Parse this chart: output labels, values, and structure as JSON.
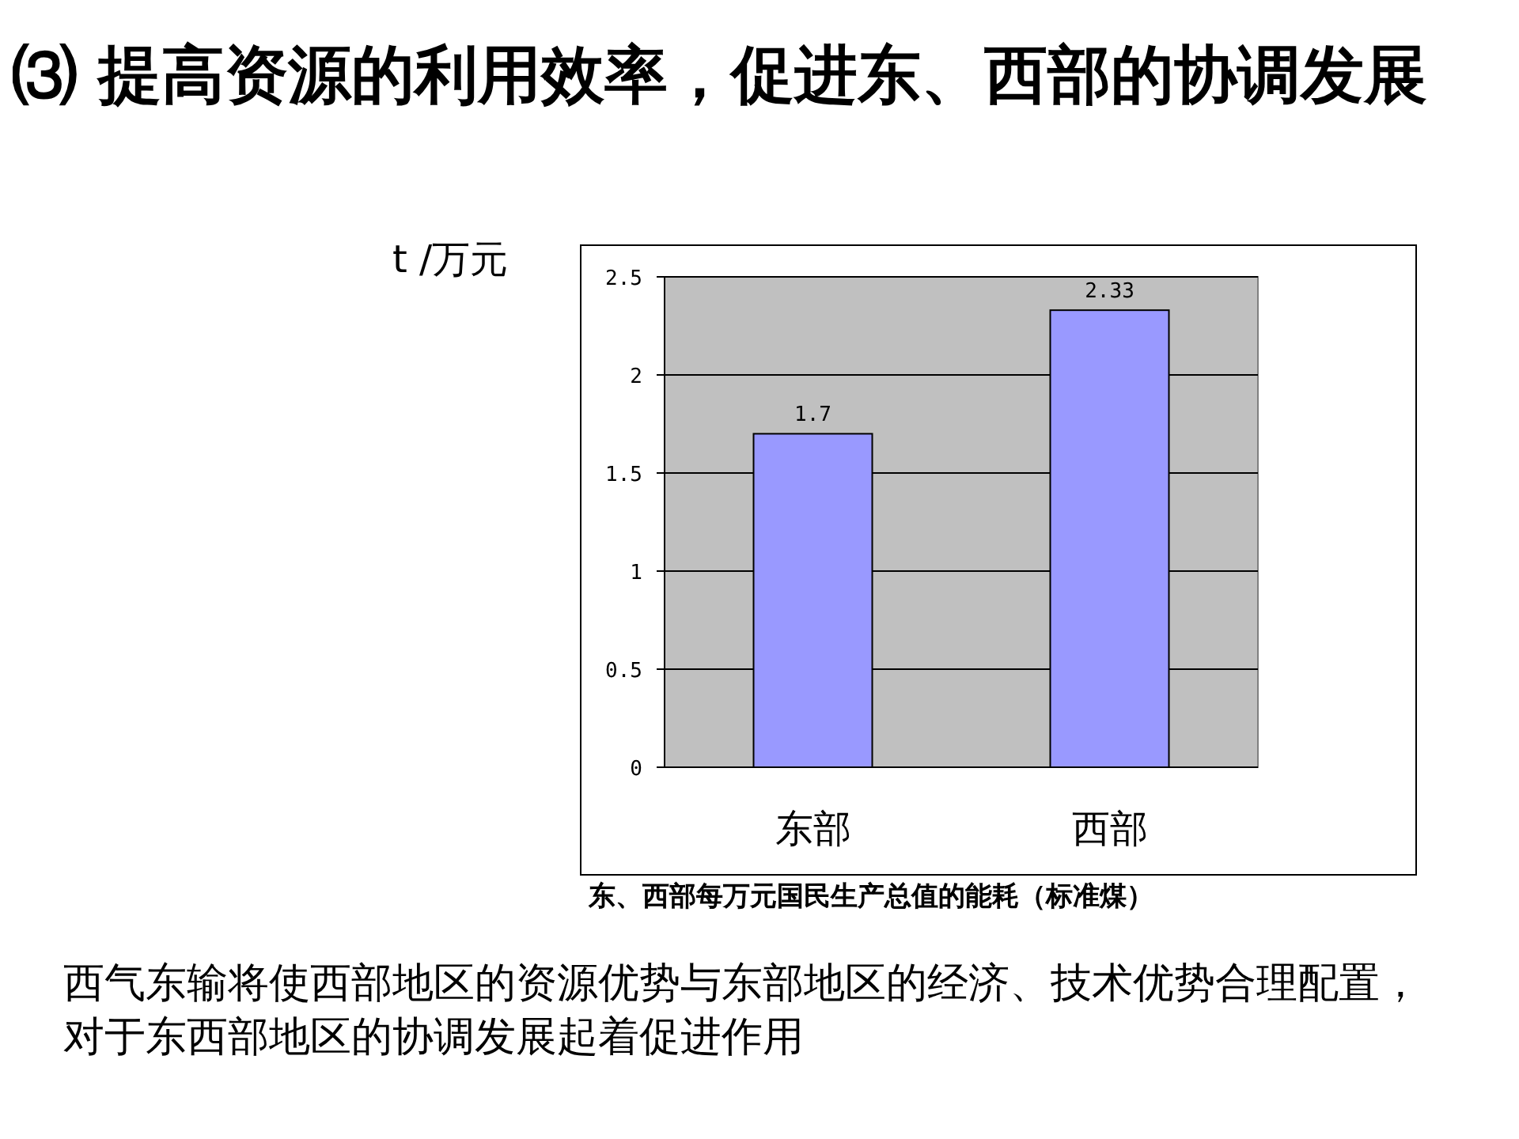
{
  "chart_data": {
    "type": "bar",
    "title": "⑶ 提高资源的利用效率，促进东、西部的协调发展",
    "ylabel": "t /万元",
    "xlabel": "东、西部每万元国民生产总值的能耗（标准煤）",
    "categories": [
      "东部",
      "西部"
    ],
    "values": [
      1.7,
      2.33
    ],
    "color": "#9999ff",
    "ylim": [
      0,
      2.5
    ],
    "yticks": [
      0,
      0.5,
      1,
      1.5,
      2,
      2.5
    ],
    "grid": "y",
    "data_labels": true,
    "annotations": [
      "西气东输将使西部地区的资源优势与东部地区的经济、技术优势合理配置，对于东西部地区的协调发展起着促进作用"
    ]
  }
}
